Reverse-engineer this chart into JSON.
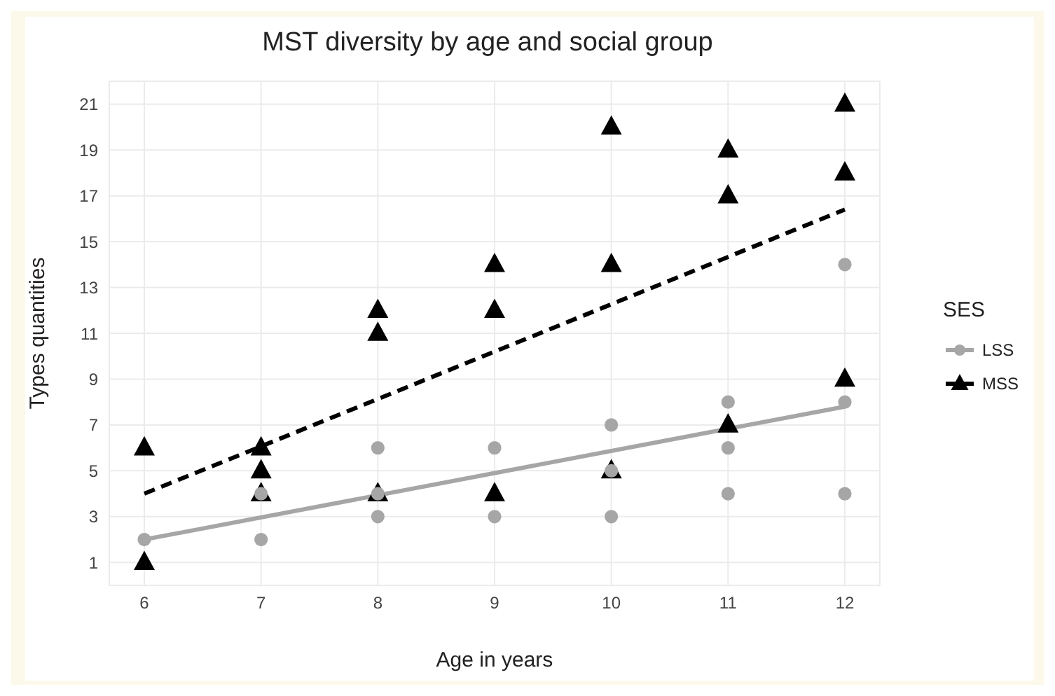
{
  "chart_data": {
    "type": "scatter",
    "title": "MST diversity by age and social group",
    "xlabel": "Age in years",
    "ylabel": "Types quantities",
    "legend_title": "SES",
    "xlim": [
      5.7,
      12.3
    ],
    "xticks": [
      6,
      7,
      8,
      9,
      10,
      11,
      12
    ],
    "ylim": [
      0,
      22
    ],
    "yticks": [
      1,
      3,
      5,
      7,
      9,
      11,
      13,
      15,
      17,
      19,
      21
    ],
    "grid": true,
    "legend": "right",
    "series": [
      {
        "name": "LSS",
        "color": "#a6a6a6",
        "marker": "circle",
        "x": [
          6,
          7,
          7,
          8,
          8,
          8,
          9,
          9,
          10,
          10,
          10,
          11,
          11,
          11,
          12,
          12,
          12
        ],
        "values": [
          2,
          4,
          2,
          6,
          4,
          3,
          6,
          3,
          7,
          5,
          3,
          8,
          6,
          4,
          14,
          8,
          4
        ]
      },
      {
        "name": "MSS",
        "color": "#000000",
        "marker": "triangle",
        "x": [
          6,
          6,
          7,
          7,
          7,
          8,
          8,
          8,
          9,
          9,
          9,
          10,
          10,
          10,
          11,
          11,
          11,
          12,
          12,
          12
        ],
        "values": [
          6,
          1,
          6,
          5,
          4,
          12,
          11,
          4,
          14,
          12,
          4,
          20,
          14,
          5,
          19,
          17,
          7,
          21,
          18,
          9
        ]
      },
      {
        "type": "line",
        "color": "#a6a6a6",
        "line_style": "solid",
        "x": [
          6,
          12
        ],
        "values": [
          2,
          7.8
        ]
      },
      {
        "type": "line",
        "color": "#000000",
        "line_style": "dashed",
        "x": [
          6,
          12
        ],
        "values": [
          4,
          16.4
        ]
      }
    ]
  }
}
